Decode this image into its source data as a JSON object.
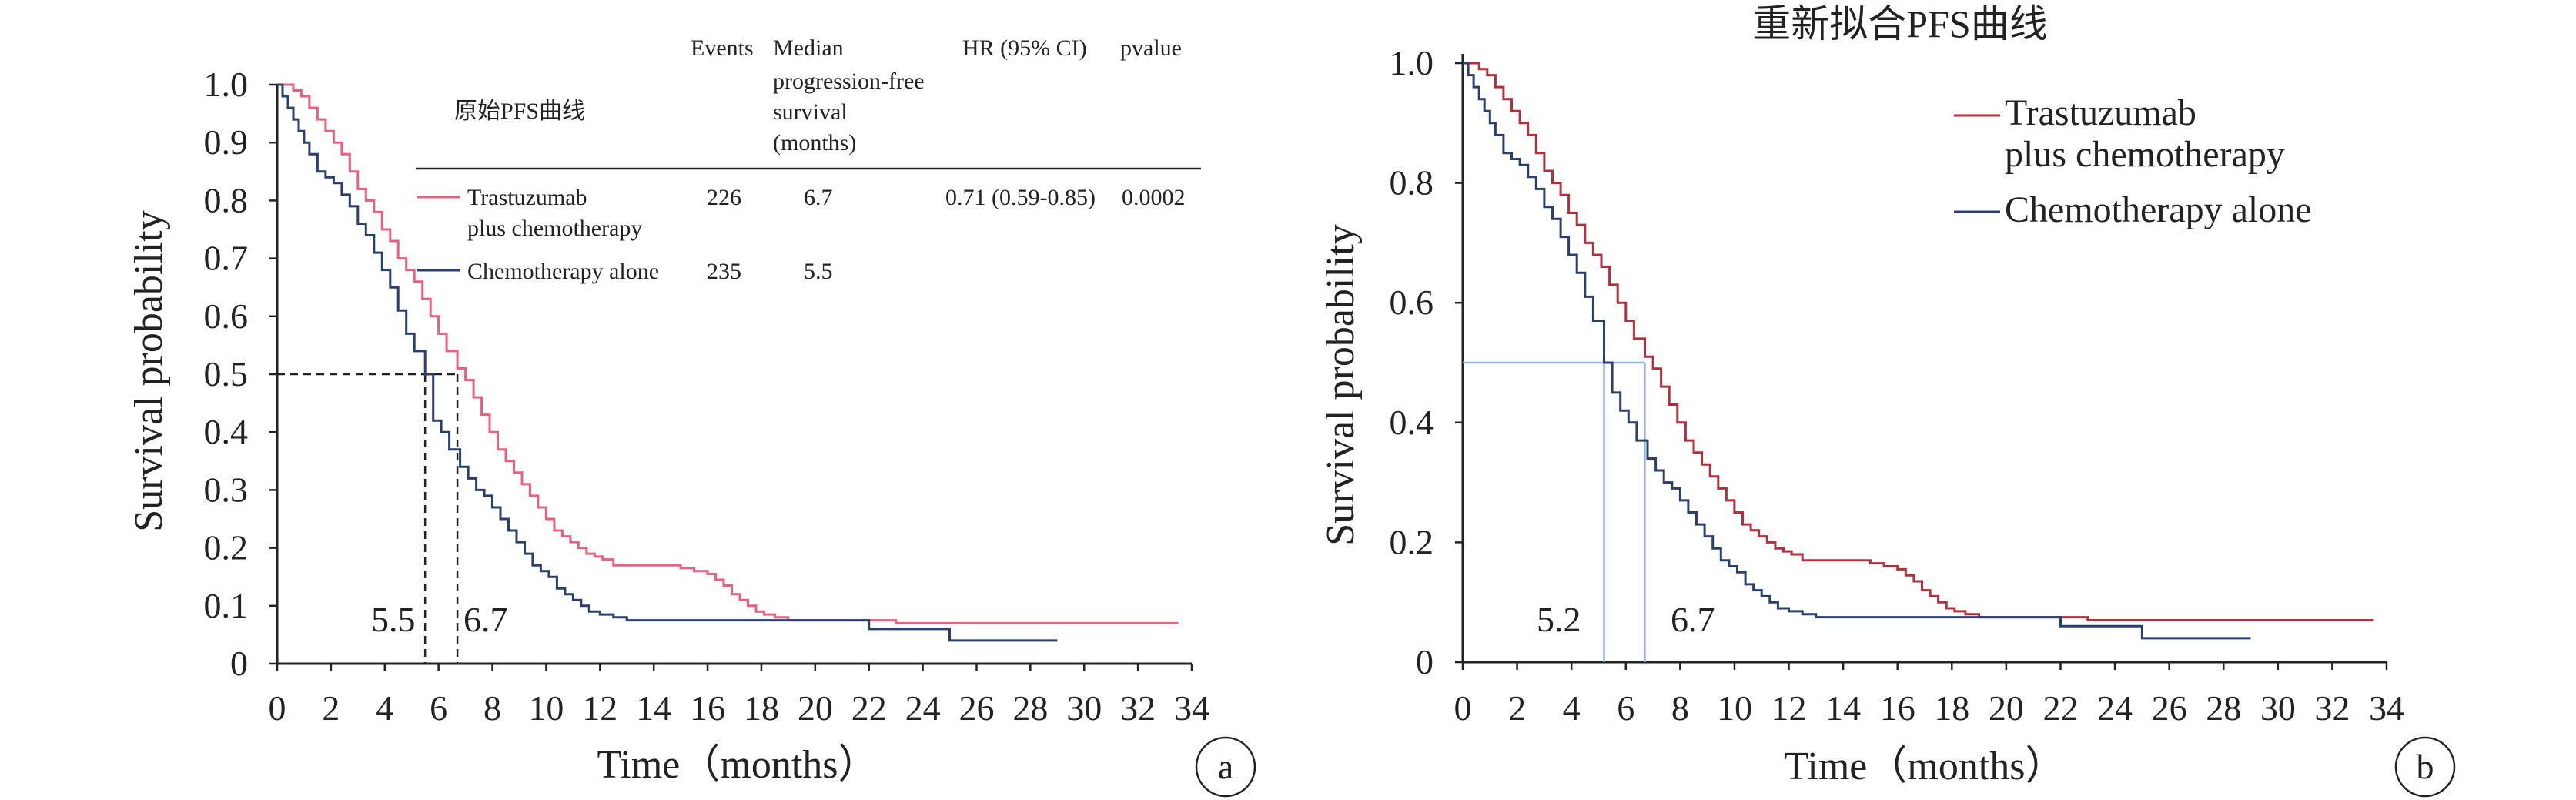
{
  "chart_data": [
    {
      "id": "a",
      "type": "line",
      "panel_label": "a",
      "title": "",
      "xlabel": "Time（months）",
      "ylabel": "Survival probability",
      "xlim": [
        0,
        34
      ],
      "ylim": [
        0,
        1.0
      ],
      "x_ticks": [
        "0",
        "2",
        "4",
        "6",
        "8",
        "10",
        "12",
        "14",
        "16",
        "18",
        "20",
        "22",
        "24",
        "26",
        "28",
        "30",
        "32",
        "34"
      ],
      "y_ticks": [
        "0",
        "0.1",
        "0.2",
        "0.3",
        "0.4",
        "0.5",
        "0.6",
        "0.7",
        "0.8",
        "0.9",
        "1.0"
      ],
      "grid": false,
      "legend_title": "原始PFS曲线",
      "table": {
        "headers": [
          "Events",
          "Median progression-free survival (months)",
          "HR (95% CI)",
          "pvalue"
        ],
        "header_lines": [
          [
            "Events"
          ],
          [
            "Median",
            "progression-free",
            "survival",
            "(months)"
          ],
          [
            "HR (95% CI)"
          ],
          [
            "pvalue"
          ]
        ],
        "rows": [
          {
            "name_lines": [
              "Trastuzumab",
              "plus chemotherapy"
            ],
            "events": "226",
            "median": "6.7",
            "hr": "0.71 (0.59-0.85)",
            "pvalue": "0.0002"
          },
          {
            "name_lines": [
              "Chemotherapy alone"
            ],
            "events": "235",
            "median": "5.5",
            "hr": "",
            "pvalue": ""
          }
        ]
      },
      "median_labels": [
        "5.5",
        "6.7"
      ],
      "median_marks": [
        5.5,
        6.7
      ],
      "median_line_y": 0.5,
      "series": [
        {
          "name": "Trastuzumab plus chemotherapy",
          "color": "#e8607e",
          "x": [
            0,
            0.3,
            0.6,
            0.9,
            1.2,
            1.5,
            1.8,
            2.1,
            2.4,
            2.7,
            3.0,
            3.3,
            3.6,
            3.9,
            4.2,
            4.5,
            4.8,
            5.1,
            5.4,
            5.7,
            6.0,
            6.3,
            6.7,
            7.0,
            7.3,
            7.6,
            7.9,
            8.2,
            8.5,
            8.8,
            9.1,
            9.4,
            9.7,
            10.0,
            10.3,
            10.6,
            10.9,
            11.2,
            11.5,
            11.8,
            12.1,
            12.5,
            13.0,
            13.5,
            14.0,
            14.5,
            15.0,
            15.5,
            16.0,
            16.3,
            16.6,
            16.9,
            17.2,
            17.5,
            17.8,
            18.1,
            18.5,
            19.0,
            20.0,
            21.0,
            22.0,
            23.0,
            24.0,
            25.0,
            26.0,
            27.0,
            28.0,
            29.0,
            30.0,
            31.0,
            32.0,
            33.5
          ],
          "y": [
            1.0,
            1.0,
            0.99,
            0.98,
            0.96,
            0.94,
            0.92,
            0.9,
            0.88,
            0.85,
            0.82,
            0.8,
            0.78,
            0.75,
            0.73,
            0.7,
            0.68,
            0.66,
            0.63,
            0.6,
            0.57,
            0.54,
            0.51,
            0.49,
            0.46,
            0.43,
            0.4,
            0.37,
            0.35,
            0.33,
            0.31,
            0.29,
            0.27,
            0.25,
            0.23,
            0.22,
            0.21,
            0.2,
            0.19,
            0.185,
            0.18,
            0.17,
            0.17,
            0.17,
            0.17,
            0.17,
            0.165,
            0.16,
            0.155,
            0.145,
            0.135,
            0.12,
            0.11,
            0.1,
            0.09,
            0.085,
            0.08,
            0.075,
            0.075,
            0.075,
            0.075,
            0.07,
            0.07,
            0.07,
            0.07,
            0.07,
            0.07,
            0.07,
            0.07,
            0.07,
            0.07,
            0.07
          ]
        },
        {
          "name": "Chemotherapy alone",
          "color": "#2b3f6f",
          "x": [
            0,
            0.2,
            0.4,
            0.6,
            0.8,
            1.0,
            1.2,
            1.5,
            1.8,
            2.1,
            2.4,
            2.7,
            3.0,
            3.3,
            3.6,
            3.9,
            4.2,
            4.5,
            4.8,
            5.1,
            5.5,
            5.8,
            6.1,
            6.4,
            6.8,
            7.1,
            7.4,
            7.7,
            8.0,
            8.3,
            8.6,
            8.9,
            9.2,
            9.5,
            9.8,
            10.1,
            10.4,
            10.7,
            11.0,
            11.3,
            11.6,
            12.0,
            12.5,
            13.0,
            14.0,
            15.0,
            16.0,
            17.0,
            18.0,
            19.0,
            20.0,
            21.0,
            22.0,
            22.5,
            23.0,
            24.0,
            25.0,
            25.5,
            26.0,
            27.0,
            28.0,
            29.0
          ],
          "y": [
            1.0,
            0.98,
            0.96,
            0.94,
            0.92,
            0.9,
            0.88,
            0.85,
            0.84,
            0.83,
            0.81,
            0.79,
            0.76,
            0.74,
            0.71,
            0.68,
            0.65,
            0.61,
            0.57,
            0.54,
            0.5,
            0.42,
            0.4,
            0.37,
            0.34,
            0.32,
            0.3,
            0.29,
            0.27,
            0.25,
            0.23,
            0.21,
            0.19,
            0.17,
            0.16,
            0.15,
            0.13,
            0.12,
            0.11,
            0.1,
            0.09,
            0.085,
            0.08,
            0.075,
            0.075,
            0.075,
            0.075,
            0.075,
            0.075,
            0.075,
            0.075,
            0.075,
            0.06,
            0.06,
            0.06,
            0.06,
            0.04,
            0.04,
            0.04,
            0.04,
            0.04,
            0.04
          ]
        }
      ]
    },
    {
      "id": "b",
      "type": "line",
      "panel_label": "b",
      "title": "重新拟合PFS曲线",
      "xlabel": "Time（months）",
      "ylabel": "Survival probability",
      "xlim": [
        0,
        34
      ],
      "ylim": [
        0,
        1.0
      ],
      "x_ticks": [
        "0",
        "2",
        "4",
        "6",
        "8",
        "10",
        "12",
        "14",
        "16",
        "18",
        "20",
        "22",
        "24",
        "26",
        "28",
        "30",
        "32",
        "34"
      ],
      "y_ticks": [
        "0",
        "0.2",
        "0.4",
        "0.6",
        "0.8",
        "1.0"
      ],
      "grid": false,
      "legend_placement": "top-right",
      "legend": [
        {
          "lines": [
            "Trastuzumab",
            "plus chemotherapy"
          ],
          "color": "#b0313b"
        },
        {
          "lines": [
            "Chemotherapy alone"
          ],
          "color": "#2b3f6f"
        }
      ],
      "median_labels": [
        "5.2",
        "6.7"
      ],
      "median_marks": [
        5.2,
        6.7
      ],
      "median_line_y": 0.5,
      "median_line_color": "#9bb3d9",
      "series": [
        {
          "name": "Trastuzumab plus chemotherapy",
          "color": "#b0313b",
          "x": [
            0,
            0.3,
            0.6,
            0.9,
            1.2,
            1.5,
            1.8,
            2.1,
            2.4,
            2.7,
            3.0,
            3.3,
            3.6,
            3.9,
            4.2,
            4.5,
            4.8,
            5.1,
            5.4,
            5.7,
            6.0,
            6.3,
            6.7,
            7.0,
            7.3,
            7.6,
            7.9,
            8.2,
            8.5,
            8.8,
            9.1,
            9.4,
            9.7,
            10.0,
            10.3,
            10.6,
            10.9,
            11.2,
            11.5,
            11.8,
            12.1,
            12.5,
            13.0,
            13.5,
            14.0,
            14.5,
            15.0,
            15.5,
            16.0,
            16.3,
            16.6,
            16.9,
            17.2,
            17.5,
            17.8,
            18.1,
            18.5,
            19.0,
            20.0,
            21.0,
            22.0,
            23.0,
            24.0,
            25.0,
            26.0,
            27.0,
            28.0,
            29.0,
            30.0,
            31.0,
            32.0,
            33.5
          ],
          "y": [
            1.0,
            1.0,
            0.99,
            0.98,
            0.96,
            0.94,
            0.92,
            0.9,
            0.88,
            0.85,
            0.82,
            0.8,
            0.78,
            0.75,
            0.73,
            0.7,
            0.68,
            0.66,
            0.63,
            0.6,
            0.57,
            0.54,
            0.51,
            0.49,
            0.46,
            0.43,
            0.4,
            0.37,
            0.35,
            0.33,
            0.31,
            0.29,
            0.27,
            0.25,
            0.23,
            0.22,
            0.21,
            0.2,
            0.19,
            0.185,
            0.18,
            0.17,
            0.17,
            0.17,
            0.17,
            0.17,
            0.165,
            0.16,
            0.155,
            0.145,
            0.135,
            0.12,
            0.11,
            0.1,
            0.09,
            0.085,
            0.08,
            0.075,
            0.075,
            0.075,
            0.075,
            0.07,
            0.07,
            0.07,
            0.07,
            0.07,
            0.07,
            0.07,
            0.07,
            0.07,
            0.07,
            0.07
          ]
        },
        {
          "name": "Chemotherapy alone",
          "color": "#2b3f6f",
          "x": [
            0,
            0.2,
            0.4,
            0.6,
            0.8,
            1.0,
            1.2,
            1.5,
            1.8,
            2.1,
            2.4,
            2.7,
            3.0,
            3.3,
            3.6,
            3.9,
            4.2,
            4.5,
            4.8,
            5.2,
            5.5,
            5.8,
            6.1,
            6.4,
            6.8,
            7.1,
            7.4,
            7.7,
            8.0,
            8.3,
            8.6,
            8.9,
            9.2,
            9.5,
            9.8,
            10.1,
            10.4,
            10.7,
            11.0,
            11.3,
            11.6,
            12.0,
            12.5,
            13.0,
            14.0,
            15.0,
            16.0,
            17.0,
            18.0,
            19.0,
            20.0,
            21.0,
            22.0,
            22.5,
            23.0,
            24.0,
            25.0,
            25.5,
            26.0,
            27.0,
            28.0,
            29.0
          ],
          "y": [
            1.0,
            0.98,
            0.96,
            0.94,
            0.92,
            0.9,
            0.88,
            0.85,
            0.84,
            0.83,
            0.81,
            0.79,
            0.76,
            0.74,
            0.71,
            0.68,
            0.65,
            0.61,
            0.57,
            0.5,
            0.45,
            0.42,
            0.4,
            0.37,
            0.34,
            0.32,
            0.3,
            0.29,
            0.27,
            0.25,
            0.23,
            0.21,
            0.19,
            0.17,
            0.16,
            0.15,
            0.13,
            0.12,
            0.11,
            0.1,
            0.09,
            0.085,
            0.08,
            0.075,
            0.075,
            0.075,
            0.075,
            0.075,
            0.075,
            0.075,
            0.075,
            0.075,
            0.06,
            0.06,
            0.06,
            0.06,
            0.04,
            0.04,
            0.04,
            0.04,
            0.04,
            0.04
          ]
        }
      ]
    }
  ]
}
